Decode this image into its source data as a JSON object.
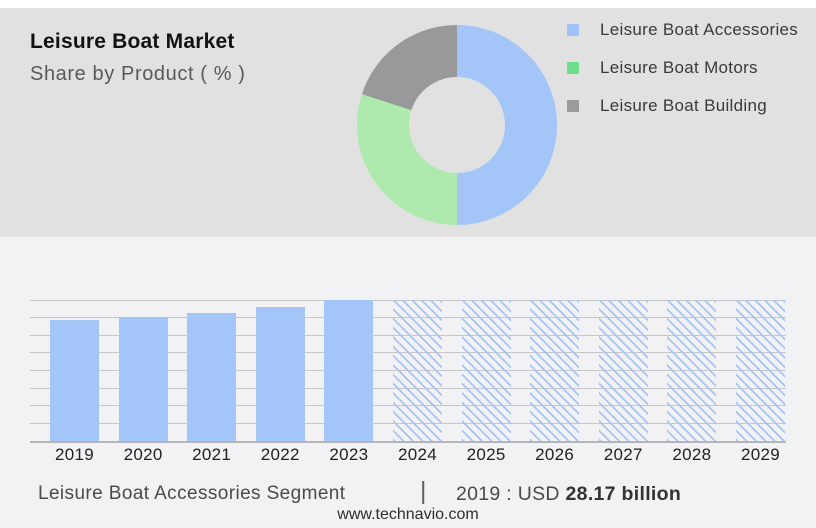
{
  "header": {
    "title": "Leisure Boat Market",
    "subtitle": "Share by Product ( % )"
  },
  "footer": {
    "segment_label": "Leisure Boat Accessories Segment",
    "separator": "|",
    "value_prefix": "2019 : USD",
    "value_bold": "28.17 billion",
    "website": "www.technavio.com"
  },
  "colors": {
    "gray_panel_bg": "#e1e1e2",
    "light_panel_bg": "#f2f2f4",
    "bar_blue": "#a4c5f8",
    "grid_gray": "#c7c7c9"
  },
  "chart_data": [
    {
      "type": "pie",
      "title": "Share by Product ( % )",
      "donut": true,
      "labels": [
        "Leisure Boat Accessories",
        "Leisure Boat Motors",
        "Leisure Boat Building"
      ],
      "values_pct": [
        50,
        30,
        20
      ],
      "colors": [
        "#a4c5f8",
        "#aeeaad",
        "#999999"
      ],
      "legend_colors": [
        "#9fc2f7",
        "#6ee08d",
        "#9b9b9b"
      ],
      "legend_position": "right"
    },
    {
      "type": "bar",
      "title": "Leisure Boat Accessories Segment",
      "categories": [
        "2019",
        "2020",
        "2021",
        "2022",
        "2023",
        "2024",
        "2025",
        "2026",
        "2027",
        "2028",
        "2029"
      ],
      "values_pct_of_plot": [
        86,
        88,
        91,
        95,
        100,
        100,
        100,
        100,
        100,
        100,
        100
      ],
      "hatched_forecast": [
        false,
        false,
        false,
        false,
        false,
        true,
        true,
        true,
        true,
        true,
        true
      ],
      "bar_color": "#a4c5f8",
      "hatch_color": "#a6c4f4",
      "grid": true,
      "gridline_count": 9,
      "known_point": {
        "year": "2019",
        "label": "USD 28.17 billion",
        "value_usd_billion": 28.17
      }
    }
  ]
}
